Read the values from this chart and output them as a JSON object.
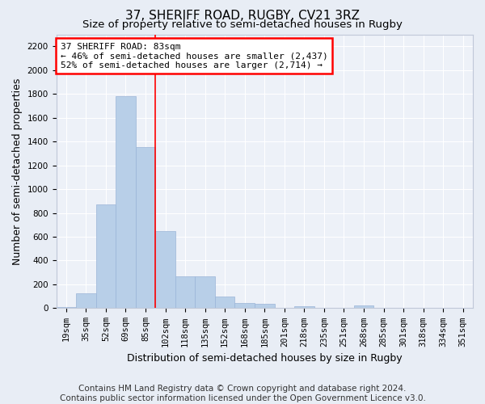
{
  "title": "37, SHERIFF ROAD, RUGBY, CV21 3RZ",
  "subtitle": "Size of property relative to semi-detached houses in Rugby",
  "xlabel": "Distribution of semi-detached houses by size in Rugby",
  "ylabel": "Number of semi-detached properties",
  "categories": [
    "19sqm",
    "35sqm",
    "52sqm",
    "69sqm",
    "85sqm",
    "102sqm",
    "118sqm",
    "135sqm",
    "152sqm",
    "168sqm",
    "185sqm",
    "201sqm",
    "218sqm",
    "235sqm",
    "251sqm",
    "268sqm",
    "285sqm",
    "301sqm",
    "318sqm",
    "334sqm",
    "351sqm"
  ],
  "values": [
    10,
    125,
    870,
    1780,
    1350,
    645,
    270,
    270,
    100,
    45,
    35,
    5,
    15,
    5,
    5,
    20,
    5,
    5,
    5,
    5,
    5
  ],
  "bar_color": "#b8cfe8",
  "bar_edge_color": "#9ab4d8",
  "property_line_bar_index": 4,
  "annotation_text": "37 SHERIFF ROAD: 83sqm\n← 46% of semi-detached houses are smaller (2,437)\n52% of semi-detached houses are larger (2,714) →",
  "ylim": [
    0,
    2300
  ],
  "yticks": [
    0,
    200,
    400,
    600,
    800,
    1000,
    1200,
    1400,
    1600,
    1800,
    2000,
    2200
  ],
  "footer1": "Contains HM Land Registry data © Crown copyright and database right 2024.",
  "footer2": "Contains public sector information licensed under the Open Government Licence v3.0.",
  "bg_color": "#e8edf5",
  "plot_bg_color": "#edf1f8",
  "grid_color": "#ffffff",
  "title_fontsize": 11,
  "subtitle_fontsize": 9.5,
  "tick_fontsize": 7.5,
  "ylabel_fontsize": 9,
  "xlabel_fontsize": 9,
  "annotation_fontsize": 8,
  "footer_fontsize": 7.5
}
